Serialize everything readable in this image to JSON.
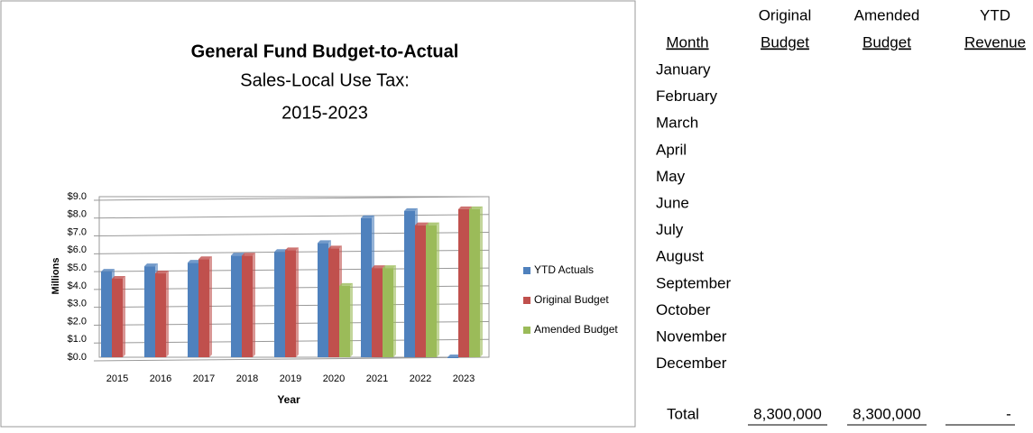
{
  "chart_data": {
    "type": "bar",
    "title": "General Fund Budget-to-Actual",
    "subtitle": [
      "Sales-Local Use Tax:",
      "2015-2023"
    ],
    "ylabel": "Millions",
    "xlabel": "Year",
    "categories": [
      "2015",
      "2016",
      "2017",
      "2018",
      "2019",
      "2020",
      "2021",
      "2022",
      "2023"
    ],
    "series": [
      {
        "name": "YTD Actuals",
        "color": "#4f81bd",
        "values": [
          4.8,
          5.1,
          5.3,
          5.7,
          5.9,
          6.4,
          7.8,
          8.2,
          0
        ]
      },
      {
        "name": "Original Budget",
        "color": "#c0504d",
        "values": [
          4.4,
          4.7,
          5.5,
          5.7,
          6.0,
          6.1,
          5.0,
          7.4,
          8.3
        ]
      },
      {
        "name": "Amended Budget",
        "color": "#9bbb59",
        "values": [
          null,
          null,
          null,
          null,
          null,
          4.0,
          5.0,
          7.4,
          8.3
        ]
      }
    ],
    "ylim": [
      0,
      9
    ],
    "yticks": [
      {
        "value": 0,
        "label": "$0.0"
      },
      {
        "value": 1,
        "label": "$1.0"
      },
      {
        "value": 2,
        "label": "$2.0"
      },
      {
        "value": 3,
        "label": "$3.0"
      },
      {
        "value": 4,
        "label": "$4.0"
      },
      {
        "value": 5,
        "label": "$5.0"
      },
      {
        "value": 6,
        "label": "$6.0"
      },
      {
        "value": 7,
        "label": "$7.0"
      },
      {
        "value": 8,
        "label": "$8.0"
      },
      {
        "value": 9,
        "label": "$9.0"
      }
    ],
    "grid": true,
    "legend": "right"
  },
  "table": {
    "headers": [
      [
        "Month"
      ],
      [
        "Original",
        "Budget"
      ],
      [
        "Amended",
        "Budget"
      ],
      [
        "YTD",
        "Revenue"
      ]
    ],
    "months": [
      "January",
      "February",
      "March",
      "April",
      "May",
      "June",
      "July",
      "August",
      "September",
      "October",
      "November",
      "December"
    ],
    "total": [
      "Total",
      "8,300,000",
      "8,300,000",
      "-"
    ]
  }
}
